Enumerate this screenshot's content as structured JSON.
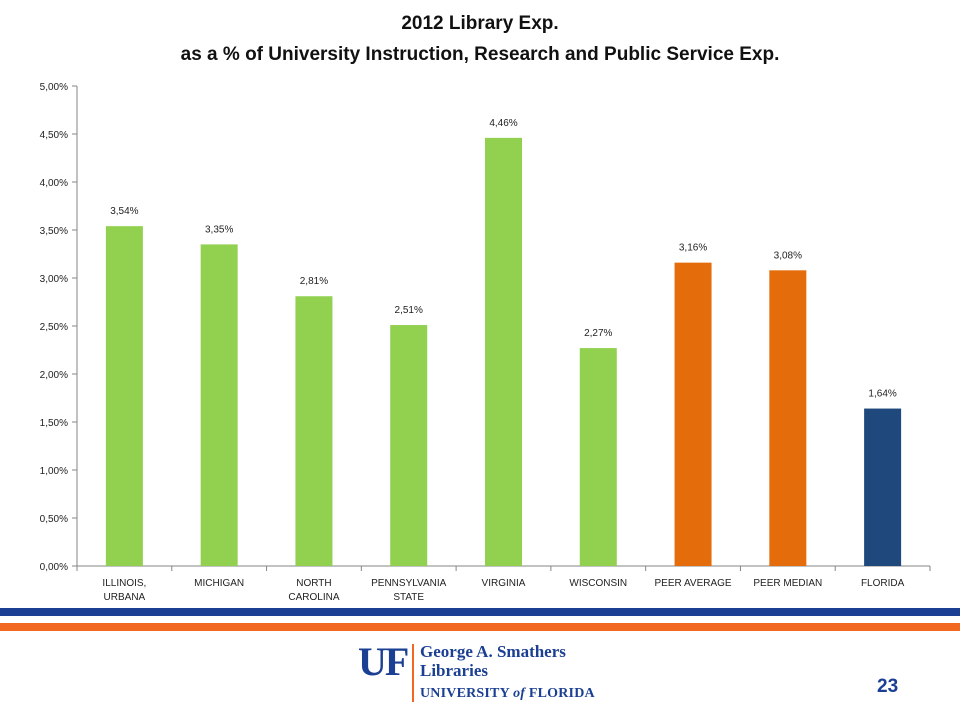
{
  "title_line1": "2012 Library Exp.",
  "title_line2": "as a % of University Instruction, Research and Public Service Exp.",
  "chart_data": {
    "type": "bar",
    "categories": [
      [
        "ILLINOIS,",
        "URBANA"
      ],
      [
        "MICHIGAN"
      ],
      [
        "NORTH",
        "CAROLINA"
      ],
      [
        "PENNSYLVANIA",
        "STATE"
      ],
      [
        "VIRGINIA"
      ],
      [
        "WISCONSIN"
      ],
      [
        "PEER AVERAGE"
      ],
      [
        "PEER MEDIAN"
      ],
      [
        "FLORIDA"
      ]
    ],
    "values": [
      3.54,
      3.35,
      2.81,
      2.51,
      4.46,
      2.27,
      3.16,
      3.08,
      1.64
    ],
    "value_labels": [
      "3,54%",
      "3,35%",
      "2,81%",
      "2,51%",
      "4,46%",
      "2,27%",
      "3,16%",
      "3,08%",
      "1,64%"
    ],
    "bar_colors": [
      "#92D050",
      "#92D050",
      "#92D050",
      "#92D050",
      "#92D050",
      "#92D050",
      "#E46C0A",
      "#E46C0A",
      "#1F497D"
    ],
    "ylim": [
      0,
      5
    ],
    "y_ticks": [
      0,
      0.5,
      1,
      1.5,
      2,
      2.5,
      3,
      3.5,
      4,
      4.5,
      5
    ],
    "y_tick_labels": [
      "0,00%",
      "0,50%",
      "1,00%",
      "1,50%",
      "2,00%",
      "2,50%",
      "3,00%",
      "3,50%",
      "4,00%",
      "4,50%",
      "5,00%"
    ],
    "grid": false,
    "legend": "none"
  },
  "footer": {
    "logo_mark": "UF",
    "logo_line1": "George A. Smathers",
    "logo_line2": "Libraries",
    "logo_line3_a": "UNIVERSITY ",
    "logo_line3_b": "of",
    "logo_line3_c": " FLORIDA",
    "page_number": "23"
  },
  "colors": {
    "uf_blue": "#1B3F93",
    "uf_orange": "#F26722",
    "axis": "#868686",
    "text": "#222222"
  }
}
